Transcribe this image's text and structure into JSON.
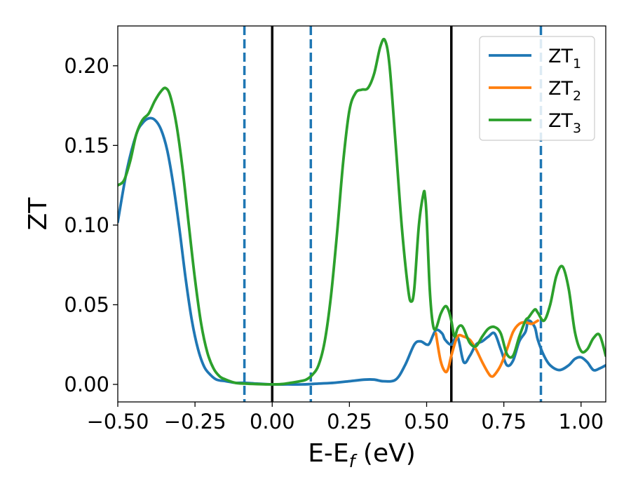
{
  "chart_data": {
    "type": "line",
    "title": "",
    "xlabel": "E-E",
    "xlabel_sub": "f",
    "xlabel_unit": " (eV)",
    "ylabel": "ZT",
    "xlim": [
      -0.5,
      1.08
    ],
    "ylim": [
      -0.011,
      0.225
    ],
    "grid": false,
    "legend_position": "top-right",
    "xticks": [
      -0.5,
      -0.25,
      0.0,
      0.25,
      0.5,
      0.75,
      1.0
    ],
    "xtick_labels": [
      "−0.50",
      "−0.25",
      "0.00",
      "0.25",
      "0.50",
      "0.75",
      "1.00"
    ],
    "yticks": [
      0.0,
      0.05,
      0.1,
      0.15,
      0.2
    ],
    "ytick_labels": [
      "0.00",
      "0.05",
      "0.10",
      "0.15",
      "0.20"
    ],
    "vlines": [
      {
        "x": -0.09,
        "style": "dashed",
        "color": "#1f77b4"
      },
      {
        "x": 0.0,
        "style": "solid",
        "color": "#000000"
      },
      {
        "x": 0.125,
        "style": "dashed",
        "color": "#1f77b4"
      },
      {
        "x": 0.58,
        "style": "solid",
        "color": "#000000"
      },
      {
        "x": 0.87,
        "style": "dashed",
        "color": "#1f77b4"
      }
    ],
    "series": [
      {
        "name": "ZT",
        "name_sub": "1",
        "color": "#1f77b4",
        "x": [
          -0.5,
          -0.47,
          -0.44,
          -0.42,
          -0.4,
          -0.38,
          -0.36,
          -0.34,
          -0.32,
          -0.3,
          -0.28,
          -0.26,
          -0.24,
          -0.22,
          -0.2,
          -0.18,
          -0.15,
          -0.12,
          -0.09,
          -0.05,
          0.0,
          0.05,
          0.1,
          0.15,
          0.2,
          0.25,
          0.3,
          0.33,
          0.36,
          0.4,
          0.43,
          0.46,
          0.48,
          0.5,
          0.51,
          0.53,
          0.55,
          0.56,
          0.58,
          0.6,
          0.62,
          0.64,
          0.66,
          0.68,
          0.7,
          0.72,
          0.74,
          0.76,
          0.78,
          0.8,
          0.82,
          0.83,
          0.85,
          0.86,
          0.88,
          0.9,
          0.93,
          0.96,
          0.98,
          1.0,
          1.02,
          1.04,
          1.06,
          1.08
        ],
        "y": [
          0.102,
          0.135,
          0.157,
          0.164,
          0.167,
          0.166,
          0.16,
          0.147,
          0.125,
          0.097,
          0.066,
          0.04,
          0.022,
          0.011,
          0.006,
          0.003,
          0.002,
          0.001,
          0.001,
          0.0005,
          0.0,
          0.0,
          0.0,
          0.0005,
          0.001,
          0.002,
          0.003,
          0.003,
          0.002,
          0.003,
          0.012,
          0.025,
          0.027,
          0.025,
          0.026,
          0.034,
          0.032,
          0.028,
          0.025,
          0.03,
          0.014,
          0.018,
          0.025,
          0.027,
          0.03,
          0.032,
          0.022,
          0.012,
          0.015,
          0.027,
          0.033,
          0.04,
          0.036,
          0.028,
          0.018,
          0.012,
          0.009,
          0.012,
          0.016,
          0.017,
          0.014,
          0.009,
          0.01,
          0.012
        ]
      },
      {
        "name": "ZT",
        "name_sub": "2",
        "color": "#ff7f0e",
        "x": [
          0.53,
          0.545,
          0.56,
          0.57,
          0.58,
          0.6,
          0.62,
          0.64,
          0.66,
          0.68,
          0.7,
          0.71,
          0.72,
          0.74,
          0.76,
          0.78,
          0.8,
          0.82,
          0.84,
          0.86
        ],
        "y": [
          0.032,
          0.015,
          0.008,
          0.01,
          0.018,
          0.03,
          0.03,
          0.028,
          0.022,
          0.014,
          0.007,
          0.005,
          0.006,
          0.012,
          0.022,
          0.033,
          0.038,
          0.039,
          0.038,
          0.04
        ]
      },
      {
        "name": "ZT",
        "name_sub": "3",
        "color": "#2ca02c",
        "x": [
          -0.5,
          -0.48,
          -0.46,
          -0.44,
          -0.42,
          -0.4,
          -0.38,
          -0.36,
          -0.345,
          -0.33,
          -0.31,
          -0.29,
          -0.27,
          -0.25,
          -0.23,
          -0.21,
          -0.19,
          -0.17,
          -0.15,
          -0.12,
          -0.09,
          -0.05,
          0.0,
          0.03,
          0.06,
          0.09,
          0.11,
          0.13,
          0.15,
          0.17,
          0.19,
          0.21,
          0.23,
          0.25,
          0.27,
          0.29,
          0.31,
          0.33,
          0.35,
          0.365,
          0.38,
          0.4,
          0.42,
          0.44,
          0.45,
          0.46,
          0.475,
          0.49,
          0.495,
          0.5,
          0.51,
          0.52,
          0.53,
          0.545,
          0.56,
          0.57,
          0.58,
          0.59,
          0.6,
          0.61,
          0.62,
          0.64,
          0.66,
          0.68,
          0.7,
          0.72,
          0.74,
          0.76,
          0.78,
          0.8,
          0.82,
          0.83,
          0.85,
          0.86,
          0.88,
          0.9,
          0.92,
          0.94,
          0.96,
          0.98,
          1.0,
          1.02,
          1.04,
          1.06,
          1.08
        ],
        "y": [
          0.125,
          0.128,
          0.14,
          0.157,
          0.166,
          0.17,
          0.178,
          0.184,
          0.186,
          0.181,
          0.163,
          0.135,
          0.1,
          0.066,
          0.038,
          0.02,
          0.01,
          0.005,
          0.003,
          0.001,
          0.0005,
          0.0002,
          0.0,
          0.0002,
          0.001,
          0.002,
          0.003,
          0.006,
          0.012,
          0.027,
          0.055,
          0.095,
          0.14,
          0.172,
          0.183,
          0.185,
          0.186,
          0.195,
          0.212,
          0.216,
          0.2,
          0.15,
          0.098,
          0.06,
          0.052,
          0.06,
          0.1,
          0.12,
          0.118,
          0.105,
          0.06,
          0.038,
          0.035,
          0.044,
          0.049,
          0.047,
          0.04,
          0.03,
          0.035,
          0.037,
          0.035,
          0.026,
          0.024,
          0.03,
          0.035,
          0.036,
          0.032,
          0.019,
          0.018,
          0.03,
          0.04,
          0.042,
          0.047,
          0.045,
          0.04,
          0.05,
          0.068,
          0.074,
          0.06,
          0.033,
          0.021,
          0.022,
          0.029,
          0.031,
          0.018
        ]
      }
    ]
  }
}
